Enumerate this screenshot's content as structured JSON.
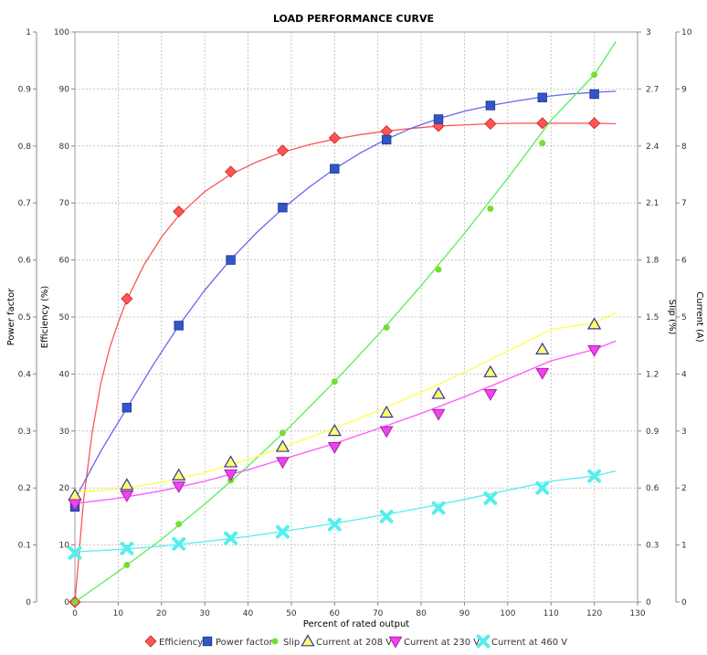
{
  "chart_data": {
    "type": "line",
    "title": "LOAD PERFORMANCE CURVE",
    "xlabel": "Percent of rated output",
    "xlim": [
      0,
      130
    ],
    "x_ticks": [
      0,
      10,
      20,
      30,
      40,
      50,
      60,
      70,
      80,
      90,
      100,
      110,
      120,
      130
    ],
    "grid": true,
    "legend_position": "bottom",
    "axes": {
      "power_factor": {
        "label": "Power factor",
        "side": "left-outer",
        "range": [
          0,
          1
        ],
        "ticks": [
          "0",
          "0.1",
          "0.2",
          "0.3",
          "0.4",
          "0.5",
          "0.6",
          "0.7",
          "0.8",
          "0.9",
          "1"
        ]
      },
      "efficiency": {
        "label": "Efficiency (%)",
        "side": "left-inner",
        "range": [
          0,
          100
        ],
        "ticks": [
          "0",
          "10",
          "20",
          "30",
          "40",
          "50",
          "60",
          "70",
          "80",
          "90",
          "100"
        ]
      },
      "slip": {
        "label": "Slip (%)",
        "side": "right-inner",
        "range": [
          0,
          3
        ],
        "ticks": [
          "0",
          "0.3",
          "0.6",
          "0.9",
          "1.2",
          "1.5",
          "1.8",
          "2.1",
          "2.4",
          "2.7",
          "3"
        ]
      },
      "current": {
        "label": "Current (A)",
        "side": "right-outer",
        "range": [
          0,
          10
        ],
        "ticks": [
          "0",
          "1",
          "2",
          "3",
          "4",
          "5",
          "6",
          "7",
          "8",
          "9",
          "10"
        ]
      }
    },
    "series": [
      {
        "name": "Efficiency",
        "axis": "efficiency",
        "color": "#ff5555",
        "marker": "diamond",
        "x": [
          0,
          12,
          24,
          36,
          48,
          60,
          72,
          84,
          96,
          108,
          120
        ],
        "values": [
          0,
          53.2,
          68.5,
          75.5,
          79.2,
          81.4,
          82.6,
          83.5,
          83.9,
          84.0,
          84.0
        ],
        "fit": [
          [
            0,
            0
          ],
          [
            2,
            17.8
          ],
          [
            4,
            29.8
          ],
          [
            6,
            38.4
          ],
          [
            8,
            44.5
          ],
          [
            10,
            49.0
          ],
          [
            12,
            53.0
          ],
          [
            16,
            59.2
          ],
          [
            20,
            64.0
          ],
          [
            24,
            67.8
          ],
          [
            30,
            72.0
          ],
          [
            36,
            75.0
          ],
          [
            42,
            77.2
          ],
          [
            48,
            78.9
          ],
          [
            54,
            80.2
          ],
          [
            60,
            81.2
          ],
          [
            66,
            82.0
          ],
          [
            72,
            82.6
          ],
          [
            78,
            83.1
          ],
          [
            84,
            83.5
          ],
          [
            90,
            83.7
          ],
          [
            96,
            83.9
          ],
          [
            102,
            84.0
          ],
          [
            108,
            84.0
          ],
          [
            114,
            84.0
          ],
          [
            120,
            84.0
          ],
          [
            125,
            83.9
          ]
        ]
      },
      {
        "name": "Power factor",
        "axis": "power_factor",
        "color": "#3355cc",
        "line_color": "#6666ee",
        "marker": "square",
        "x": [
          0,
          12,
          24,
          36,
          48,
          60,
          72,
          84,
          96,
          108,
          120
        ],
        "values": [
          0.167,
          0.341,
          0.485,
          0.6,
          0.692,
          0.76,
          0.811,
          0.847,
          0.871,
          0.885,
          0.891
        ],
        "fit": [
          [
            0,
            0.18
          ],
          [
            6,
            0.265
          ],
          [
            12,
            0.34
          ],
          [
            18,
            0.415
          ],
          [
            24,
            0.485
          ],
          [
            30,
            0.547
          ],
          [
            36,
            0.601
          ],
          [
            42,
            0.648
          ],
          [
            48,
            0.69
          ],
          [
            54,
            0.727
          ],
          [
            60,
            0.76
          ],
          [
            66,
            0.788
          ],
          [
            72,
            0.812
          ],
          [
            78,
            0.832
          ],
          [
            84,
            0.848
          ],
          [
            90,
            0.861
          ],
          [
            96,
            0.871
          ],
          [
            102,
            0.879
          ],
          [
            108,
            0.886
          ],
          [
            114,
            0.891
          ],
          [
            120,
            0.894
          ],
          [
            125,
            0.896
          ]
        ]
      },
      {
        "name": "Slip",
        "axis": "slip",
        "color": "#77dd33",
        "line_color": "#55ee55",
        "marker": "circle",
        "x": [
          0,
          12,
          24,
          36,
          48,
          60,
          72,
          84,
          96,
          108,
          120
        ],
        "values": [
          0.0,
          0.195,
          0.41,
          0.64,
          0.89,
          1.16,
          1.445,
          1.75,
          2.07,
          2.415,
          2.775
        ],
        "fit": [
          [
            0,
            0.0
          ],
          [
            10,
            0.16
          ],
          [
            20,
            0.33
          ],
          [
            30,
            0.515
          ],
          [
            40,
            0.715
          ],
          [
            50,
            0.93
          ],
          [
            60,
            1.16
          ],
          [
            70,
            1.405
          ],
          [
            80,
            1.665
          ],
          [
            90,
            1.94
          ],
          [
            100,
            2.23
          ],
          [
            110,
            2.535
          ],
          [
            120,
            2.775
          ],
          [
            125,
            2.95
          ]
        ]
      },
      {
        "name": "Current at 208 V",
        "axis": "current",
        "color": "#ffff66",
        "stroke": "#333399",
        "line_color": "#ffff44",
        "marker": "triangle-up",
        "x": [
          0,
          12,
          24,
          36,
          48,
          60,
          72,
          84,
          96,
          108,
          120
        ],
        "values": [
          1.87,
          2.05,
          2.22,
          2.45,
          2.72,
          3.0,
          3.32,
          3.65,
          4.03,
          4.43,
          4.87
        ],
        "fit": [
          [
            0,
            1.93
          ],
          [
            10,
            1.98
          ],
          [
            20,
            2.1
          ],
          [
            30,
            2.27
          ],
          [
            40,
            2.5
          ],
          [
            50,
            2.77
          ],
          [
            60,
            3.05
          ],
          [
            70,
            3.35
          ],
          [
            80,
            3.68
          ],
          [
            90,
            4.03
          ],
          [
            100,
            4.4
          ],
          [
            110,
            4.78
          ],
          [
            120,
            4.9
          ],
          [
            125,
            5.07
          ]
        ]
      },
      {
        "name": "Current at 230 V",
        "axis": "current",
        "color": "#ee44ee",
        "stroke": "#aa22aa",
        "line_color": "#ff55ff",
        "marker": "triangle-down",
        "x": [
          0,
          12,
          24,
          36,
          48,
          60,
          72,
          84,
          96,
          108,
          120
        ],
        "values": [
          1.72,
          1.87,
          2.03,
          2.24,
          2.46,
          2.72,
          3.0,
          3.3,
          3.65,
          4.02,
          4.42
        ],
        "fit": [
          [
            0,
            1.73
          ],
          [
            10,
            1.82
          ],
          [
            20,
            1.95
          ],
          [
            30,
            2.12
          ],
          [
            40,
            2.32
          ],
          [
            50,
            2.55
          ],
          [
            60,
            2.78
          ],
          [
            70,
            3.04
          ],
          [
            80,
            3.31
          ],
          [
            90,
            3.6
          ],
          [
            100,
            3.91
          ],
          [
            110,
            4.23
          ],
          [
            120,
            4.43
          ],
          [
            125,
            4.58
          ]
        ]
      },
      {
        "name": "Current at 460 V",
        "axis": "current",
        "color": "#55eeee",
        "line_color": "#55eeee",
        "marker": "x",
        "x": [
          0,
          12,
          24,
          36,
          48,
          60,
          72,
          84,
          96,
          108,
          120
        ],
        "values": [
          0.86,
          0.94,
          1.02,
          1.12,
          1.23,
          1.36,
          1.5,
          1.65,
          1.82,
          2.0,
          2.21
        ],
        "fit": [
          [
            0,
            0.88
          ],
          [
            10,
            0.92
          ],
          [
            20,
            0.98
          ],
          [
            30,
            1.06
          ],
          [
            40,
            1.15
          ],
          [
            50,
            1.26
          ],
          [
            60,
            1.38
          ],
          [
            70,
            1.51
          ],
          [
            80,
            1.65
          ],
          [
            90,
            1.8
          ],
          [
            100,
            1.96
          ],
          [
            110,
            2.12
          ],
          [
            120,
            2.21
          ],
          [
            125,
            2.3
          ]
        ]
      }
    ]
  }
}
